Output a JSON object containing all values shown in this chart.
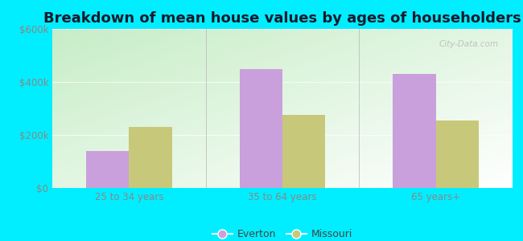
{
  "title": "Breakdown of mean house values by ages of householders",
  "categories": [
    "25 to 34 years",
    "35 to 64 years",
    "65 years+"
  ],
  "everton_values": [
    140000,
    450000,
    430000
  ],
  "missouri_values": [
    230000,
    275000,
    255000
  ],
  "everton_color": "#c9a0dc",
  "missouri_color": "#c8c87a",
  "background_outer": "#00eeff",
  "ylim": [
    0,
    600000
  ],
  "yticks": [
    0,
    200000,
    400000,
    600000
  ],
  "ytick_labels": [
    "$0",
    "$200k",
    "$400k",
    "$600k"
  ],
  "bar_width": 0.28,
  "legend_labels": [
    "Everton",
    "Missouri"
  ],
  "watermark": "City-Data.com",
  "title_fontsize": 13,
  "tick_fontsize": 8.5,
  "legend_fontsize": 9
}
